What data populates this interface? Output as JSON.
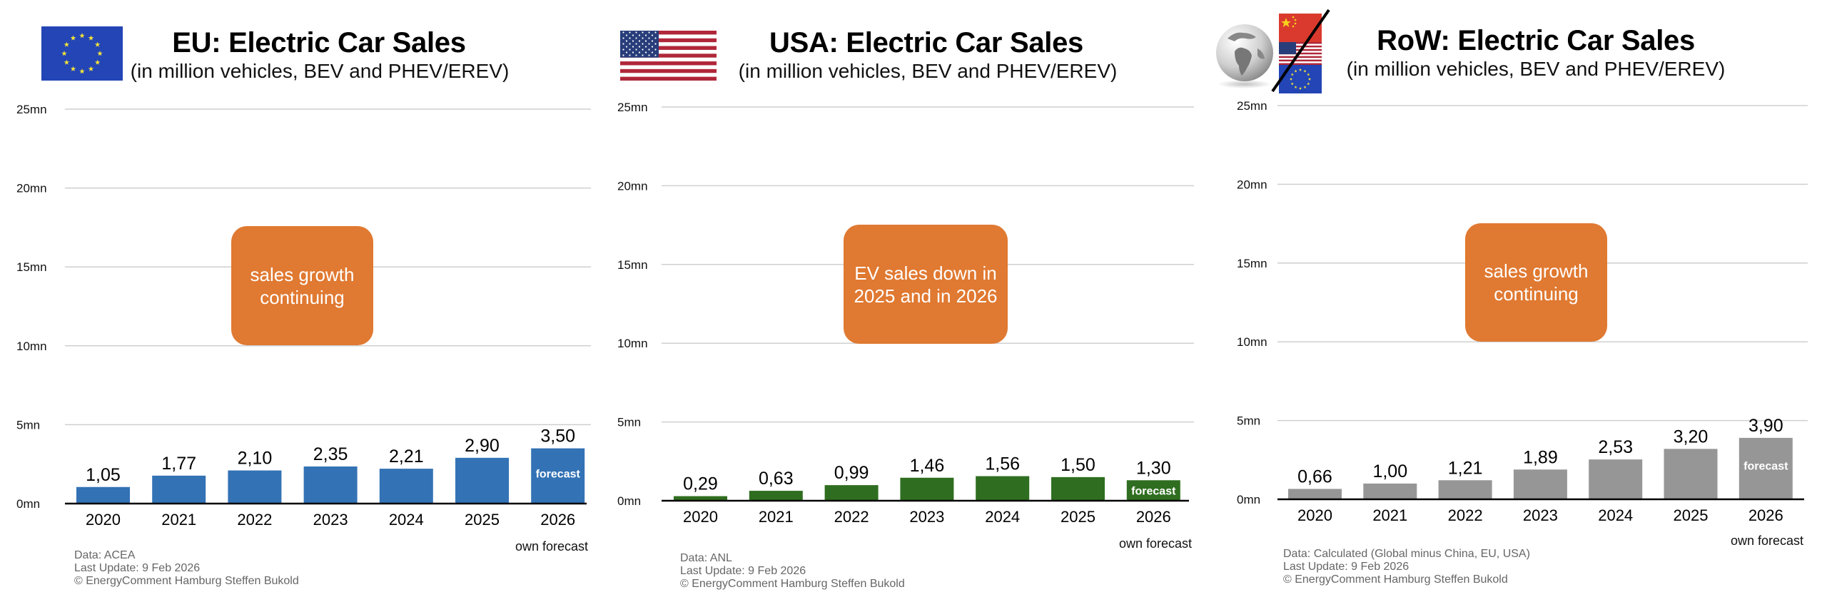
{
  "chart_data": [
    {
      "type": "bar",
      "id": "eu",
      "title": "EU: Electric Car Sales",
      "subtitle": "(in million vehicles, BEV and PHEV/EREV)",
      "icon": "eu-flag-icon",
      "categories": [
        "2020",
        "2021",
        "2022",
        "2023",
        "2024",
        "2025",
        "2026"
      ],
      "values": [
        1.05,
        1.77,
        2.1,
        2.35,
        2.21,
        2.9,
        3.5
      ],
      "value_labels": [
        "1,05",
        "1,77",
        "2,10",
        "2,35",
        "2,21",
        "2,90",
        "3,50"
      ],
      "forecast_index": 6,
      "forecast_bar_label": "forecast",
      "forecast_note": "own forecast",
      "bar_color": "#3372B5",
      "yticks": [
        0,
        5,
        10,
        15,
        20,
        25
      ],
      "ytick_labels": [
        "0mn",
        "5mn",
        "10mn",
        "15mn",
        "20mn",
        "25mn"
      ],
      "ylim": [
        0,
        25
      ],
      "grid": true,
      "xlabel": "",
      "ylabel": "",
      "annotation": [
        "sales growth",
        "continuing"
      ],
      "annotation_color": "#E07931",
      "footer": [
        "Data: ACEA",
        "Last Update: 9 Feb 2026",
        "© EnergyComment Hamburg Steffen Bukold"
      ]
    },
    {
      "type": "bar",
      "id": "usa",
      "title": "USA: Electric Car Sales",
      "subtitle": "(in million vehicles, BEV and PHEV/EREV)",
      "icon": "us-flag-icon",
      "categories": [
        "2020",
        "2021",
        "2022",
        "2023",
        "2024",
        "2025",
        "2026"
      ],
      "values": [
        0.29,
        0.63,
        0.99,
        1.46,
        1.56,
        1.5,
        1.3
      ],
      "value_labels": [
        "0,29",
        "0,63",
        "0,99",
        "1,46",
        "1,56",
        "1,50",
        "1,30"
      ],
      "forecast_index": 6,
      "forecast_bar_label": "forecast",
      "forecast_note": "own forecast",
      "bar_color": "#2F6E20",
      "yticks": [
        0,
        5,
        10,
        15,
        20,
        25
      ],
      "ytick_labels": [
        "0mn",
        "5mn",
        "10mn",
        "15mn",
        "20mn",
        "25mn"
      ],
      "ylim": [
        0,
        25
      ],
      "grid": true,
      "xlabel": "",
      "ylabel": "",
      "annotation": [
        "EV sales down in",
        "2025 and in 2026"
      ],
      "annotation_color": "#E07931",
      "footer": [
        "Data: ANL",
        "Last Update: 9 Feb 2026",
        "© EnergyComment Hamburg Steffen Bukold"
      ]
    },
    {
      "type": "bar",
      "id": "row",
      "title": "RoW: Electric Car Sales",
      "subtitle": "(in million vehicles, BEV and PHEV/EREV)",
      "icon": "globe-minus-china-usa-eu-icon",
      "categories": [
        "2020",
        "2021",
        "2022",
        "2023",
        "2024",
        "2025",
        "2026"
      ],
      "values": [
        0.66,
        1.0,
        1.21,
        1.89,
        2.53,
        3.2,
        3.9
      ],
      "value_labels": [
        "0,66",
        "1,00",
        "1,21",
        "1,89",
        "2,53",
        "3,20",
        "3,90"
      ],
      "forecast_index": 6,
      "forecast_bar_label": "forecast",
      "forecast_note": "own forecast",
      "bar_color": "#969696",
      "yticks": [
        0,
        5,
        10,
        15,
        20,
        25
      ],
      "ytick_labels": [
        "0mn",
        "5mn",
        "10mn",
        "15mn",
        "20mn",
        "25mn"
      ],
      "ylim": [
        0,
        25
      ],
      "grid": true,
      "xlabel": "",
      "ylabel": "",
      "annotation": [
        "sales growth",
        "continuing"
      ],
      "annotation_color": "#E07931",
      "footer": [
        "Data: Calculated (Global minus China, EU, USA)",
        "Last Update: 9 Feb 2026",
        "© EnergyComment Hamburg Steffen Bukold"
      ]
    }
  ]
}
